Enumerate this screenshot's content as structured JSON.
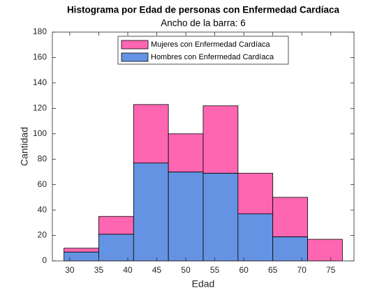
{
  "chart_data": {
    "type": "histogram",
    "title": "Histograma por Edad de personas con Enfermedad Cardíaca",
    "subtitle": "Ancho de la barra: 6",
    "x_label": "Edad",
    "y_label": "Cantidad",
    "bins": [
      29,
      35,
      41,
      47,
      53,
      59,
      65,
      71,
      77
    ],
    "series": [
      {
        "name": "Mujeres con Enfermedad Cardíaca",
        "color": "#ff66b2",
        "values": [
          3,
          14,
          46,
          30,
          53,
          32,
          31,
          17
        ]
      },
      {
        "name": "Hombres con Enfermedad Cardíaca",
        "color": "#6593e3",
        "values": [
          7,
          21,
          77,
          70,
          69,
          37,
          19,
          0
        ]
      }
    ],
    "stack_order": "bottom_last",
    "xlim": [
      27,
      79
    ],
    "xticks": [
      30,
      35,
      40,
      45,
      50,
      55,
      60,
      65,
      70,
      75
    ],
    "ylim": [
      0,
      180
    ],
    "yticks": [
      0,
      20,
      40,
      60,
      80,
      100,
      120,
      140,
      160,
      180
    ],
    "legend": "upper center"
  }
}
